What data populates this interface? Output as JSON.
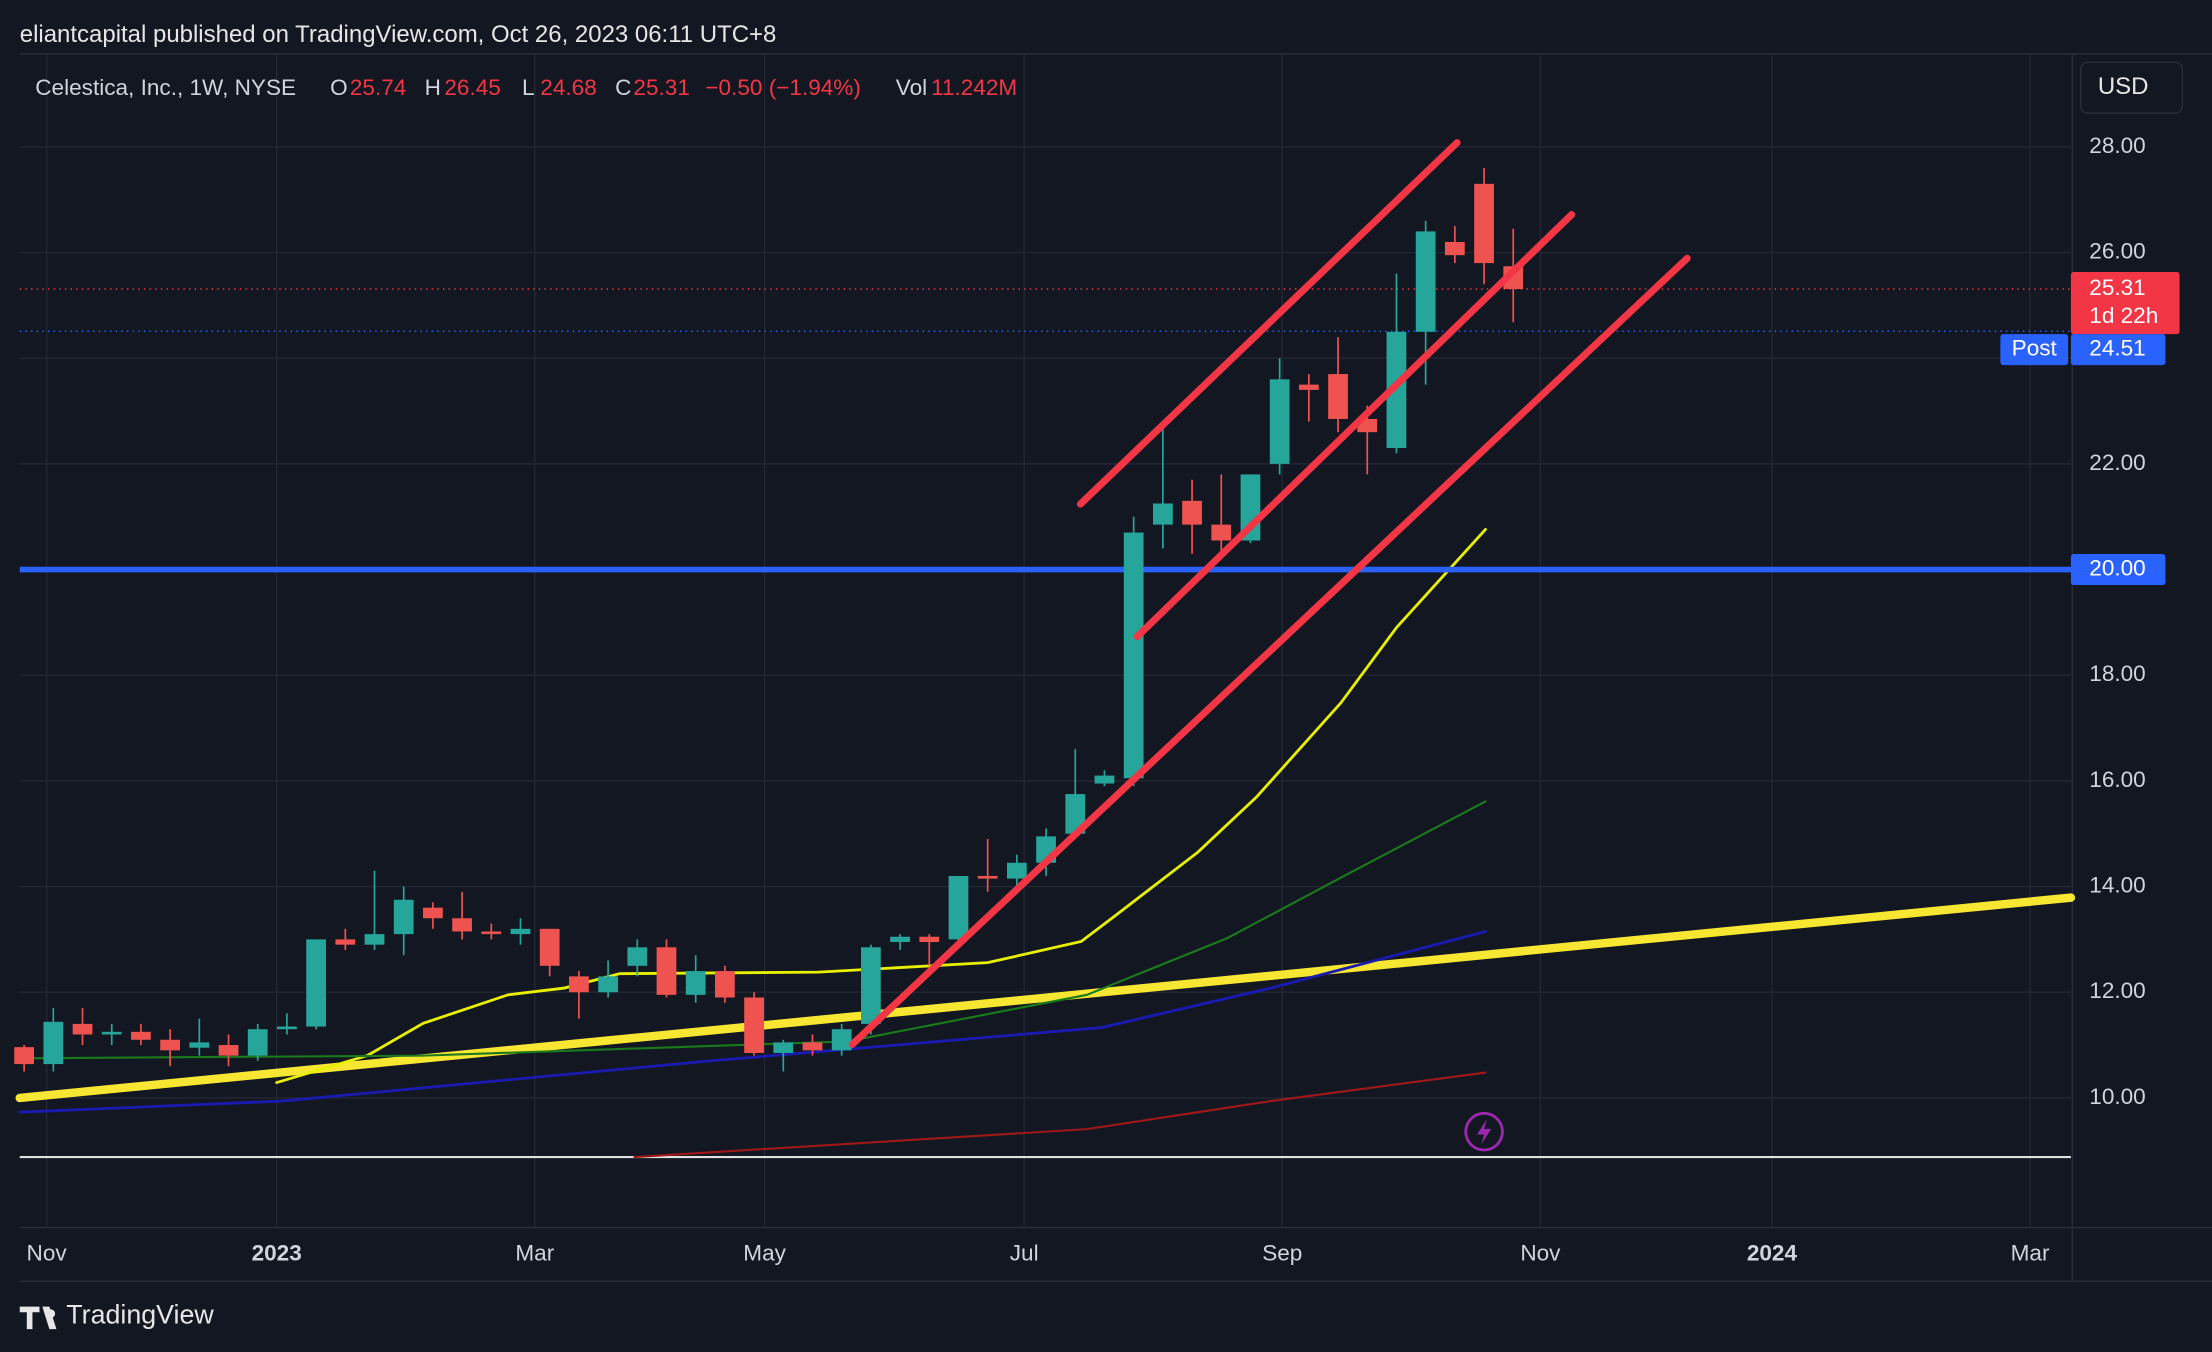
{
  "header": {
    "title": "eliantcapital published on TradingView.com, Oct 26, 2023 06:11 UTC+8"
  },
  "footer": {
    "brand": "TradingView"
  },
  "currency_button": "USD",
  "chart_data": {
    "type": "candlestick",
    "legend": {
      "symbol": "Celestica, Inc., 1W, NYSE",
      "open_label": "O",
      "open": 25.74,
      "high_label": "H",
      "high": 26.45,
      "low_label": "L",
      "low": 24.68,
      "close_label": "C",
      "close": 25.31,
      "change": "−0.50 (−1.94%)",
      "volume_label": "Vol",
      "volume": "11.242M"
    },
    "up_color": "#26a69a",
    "down_color": "#ef5350",
    "open": [
      10.96,
      10.64,
      11.4,
      11.2,
      11.25,
      11.1,
      10.95,
      11.0,
      10.8,
      11.3,
      11.35,
      13.0,
      12.9,
      13.1,
      13.6,
      13.4,
      13.15,
      13.1,
      13.2,
      12.3,
      12.0,
      12.5,
      12.85,
      11.95,
      12.4,
      11.9,
      10.85,
      11.05,
      10.9,
      11.4,
      12.95,
      13.05,
      13.0,
      14.2,
      14.15,
      14.45,
      15.0,
      15.95,
      16.05,
      20.85,
      21.3,
      20.85,
      20.55,
      22.0,
      23.5,
      23.7,
      22.85,
      22.3,
      24.5,
      26.2,
      27.3,
      25.74
    ],
    "high": [
      11.0,
      11.7,
      11.7,
      11.4,
      11.4,
      11.3,
      11.5,
      11.2,
      11.4,
      11.6,
      13.0,
      13.2,
      14.3,
      14.0,
      13.7,
      13.9,
      13.3,
      13.4,
      13.2,
      12.4,
      12.6,
      13.0,
      13.0,
      12.7,
      12.5,
      12.0,
      11.1,
      11.2,
      11.4,
      12.9,
      13.1,
      13.1,
      14.2,
      14.9,
      14.6,
      15.1,
      16.6,
      16.2,
      21.0,
      22.7,
      21.7,
      21.8,
      21.8,
      24.0,
      23.7,
      24.4,
      23.1,
      25.6,
      26.6,
      26.5,
      27.6,
      26.45
    ],
    "low": [
      10.5,
      10.5,
      11.0,
      11.0,
      11.0,
      10.6,
      10.8,
      10.6,
      10.7,
      11.2,
      11.3,
      12.8,
      12.8,
      12.7,
      13.2,
      13.0,
      13.0,
      12.9,
      12.3,
      11.5,
      11.9,
      12.3,
      11.9,
      11.8,
      11.8,
      10.8,
      10.5,
      10.8,
      10.8,
      11.2,
      12.8,
      12.5,
      12.9,
      13.9,
      13.9,
      14.2,
      14.9,
      15.9,
      15.9,
      20.4,
      20.3,
      20.2,
      20.5,
      21.8,
      22.8,
      22.6,
      21.8,
      22.2,
      23.5,
      25.8,
      25.4,
      24.68
    ],
    "close": [
      10.64,
      11.44,
      11.2,
      11.25,
      11.1,
      10.9,
      11.05,
      10.8,
      11.3,
      11.35,
      13.0,
      12.9,
      13.1,
      13.75,
      13.4,
      13.15,
      13.1,
      13.2,
      12.5,
      12.0,
      12.3,
      12.85,
      11.95,
      12.4,
      11.9,
      10.85,
      11.05,
      10.9,
      11.3,
      12.85,
      13.05,
      12.95,
      14.2,
      14.15,
      14.45,
      14.95,
      15.75,
      16.1,
      20.7,
      21.25,
      20.85,
      20.55,
      21.8,
      23.6,
      23.4,
      22.85,
      22.6,
      24.5,
      26.4,
      25.95,
      25.8,
      25.31
    ],
    "xlim": [
      -0.15,
      70.1
    ],
    "ylim": [
      8.88,
      29.76
    ],
    "xticks": [
      {
        "value": 0.77,
        "label": "Nov"
      },
      {
        "value": 8.65,
        "label": "2023"
      },
      {
        "value": 17.49,
        "label": "Mar"
      },
      {
        "value": 25.36,
        "label": "May"
      },
      {
        "value": 34.25,
        "label": "Jul"
      },
      {
        "value": 43.09,
        "label": "Sep"
      },
      {
        "value": 51.93,
        "label": "Nov"
      },
      {
        "value": 59.86,
        "label": "2024"
      },
      {
        "value": 68.7,
        "label": "Mar"
      }
    ],
    "yticks": [
      {
        "value": 10,
        "label": "10.00"
      },
      {
        "value": 12,
        "label": "12.00"
      },
      {
        "value": 14,
        "label": "14.00"
      },
      {
        "value": 16,
        "label": "16.00"
      },
      {
        "value": 18,
        "label": "18.00"
      },
      {
        "value": 20,
        "label": "20.00"
      },
      {
        "value": 22,
        "label": "22.00"
      },
      {
        "value": 24,
        "label": "24.00"
      },
      {
        "value": 26,
        "label": "26.00"
      },
      {
        "value": 28,
        "label": "28.00"
      }
    ],
    "grid": true,
    "indicators": [
      {
        "color": "#f7e733",
        "width": 6,
        "x": [
          -0.15,
          70.1
        ],
        "values": [
          10.0,
          13.79
        ]
      },
      {
        "color": "#e8f000",
        "width": 2,
        "x": [
          8.65,
          11.75,
          13.67,
          16.57,
          18.5,
          20.4,
          27.2,
          33.0,
          36.2,
          37.3,
          40.2,
          42.2,
          45.1,
          47.0,
          50.05
        ],
        "values": [
          10.29,
          10.8,
          11.41,
          11.95,
          12.08,
          12.35,
          12.38,
          12.56,
          12.96,
          13.42,
          14.65,
          15.69,
          17.48,
          18.9,
          20.76
        ]
      },
      {
        "color": "#1b7a1b",
        "width": 1.5,
        "x": [
          -0.15,
          13.67,
          28.2,
          36.4,
          41.2,
          45.1,
          50.05
        ],
        "values": [
          10.75,
          10.8,
          11.07,
          11.95,
          13.02,
          14.17,
          15.61
        ]
      },
      {
        "color": "#1a1ab0",
        "width": 2,
        "x": [
          -0.15,
          8.84,
          23.3,
          36.9,
          42.7,
          50.05
        ],
        "values": [
          9.73,
          9.94,
          10.69,
          11.33,
          12.08,
          13.15
        ]
      },
      {
        "color": "#a01818",
        "width": 1.5,
        "x": [
          20.9,
          36.4,
          42.7,
          50.05
        ],
        "values": [
          8.88,
          9.41,
          9.94,
          10.48
        ]
      }
    ],
    "trendlines": [
      {
        "color": "#f23645",
        "x": [
          36.18,
          49.08
        ],
        "values": [
          21.24,
          28.08
        ]
      },
      {
        "color": "#f23645",
        "x": [
          38.12,
          53.0
        ],
        "values": [
          18.73,
          26.72
        ]
      },
      {
        "color": "#f23645",
        "x": [
          28.36,
          56.96
        ],
        "values": [
          11.01,
          25.89
        ]
      }
    ],
    "horizontal_line": {
      "value": 20,
      "label": "20.00",
      "color": "#2962ff"
    },
    "last_price": {
      "value": 25.31,
      "countdown": "1d 22h",
      "color": "#f23645"
    },
    "post_market": {
      "tag": "Post",
      "value": 24.51,
      "color": "#2962ff"
    }
  }
}
